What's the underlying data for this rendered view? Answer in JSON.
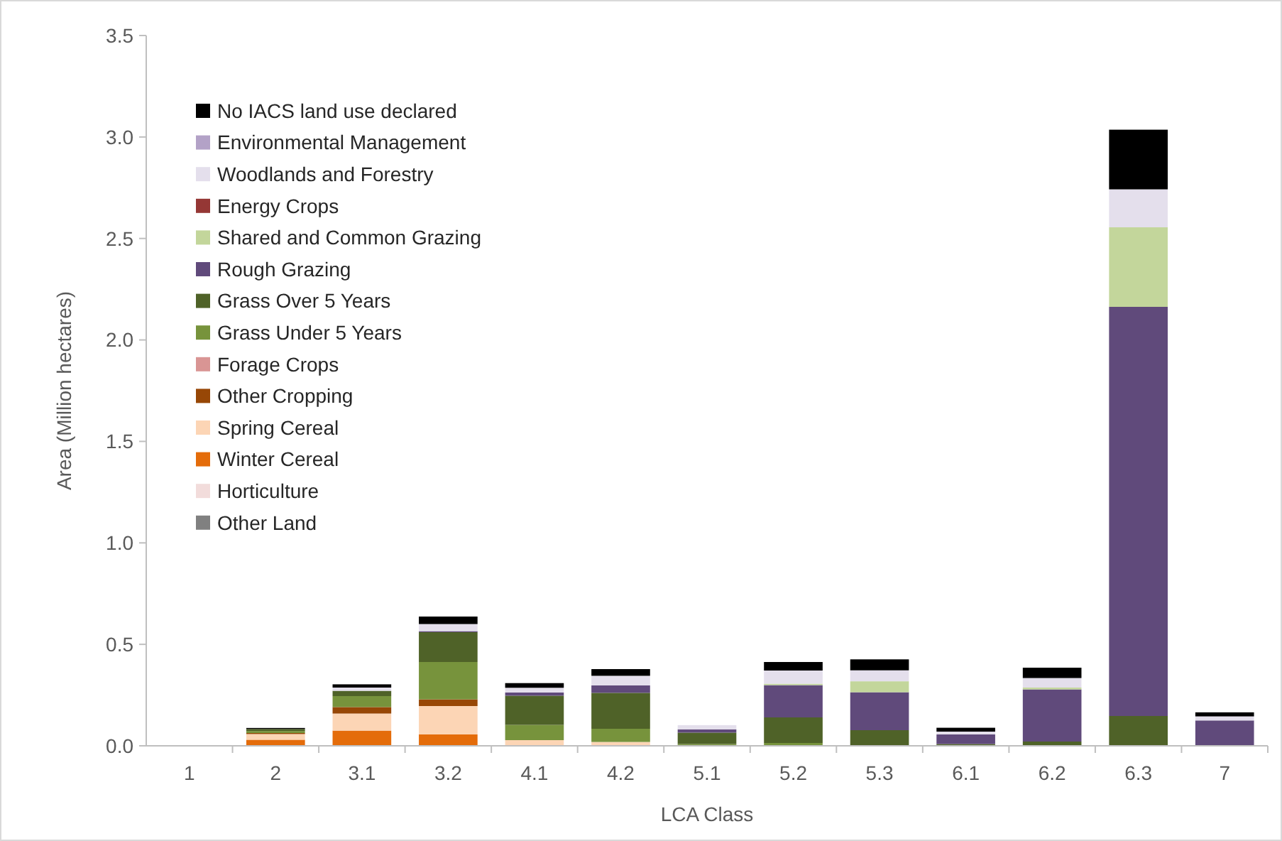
{
  "chart_data": {
    "type": "bar",
    "stacked": true,
    "xlabel": "LCA Class",
    "ylabel": "Area (Million hectares)",
    "categories": [
      "1",
      "2",
      "3.1",
      "3.2",
      "4.1",
      "4.2",
      "5.1",
      "5.2",
      "5.3",
      "6.1",
      "6.2",
      "6.3",
      "7"
    ],
    "ylim": [
      0,
      3.5
    ],
    "yticks": [
      {
        "value": 0,
        "label": "0.0"
      },
      {
        "value": 0.5,
        "label": "0.5"
      },
      {
        "value": 1,
        "label": "1.0"
      },
      {
        "value": 1.5,
        "label": "1.5"
      },
      {
        "value": 2,
        "label": "2.0"
      },
      {
        "value": 2.5,
        "label": "2.5"
      },
      {
        "value": 3,
        "label": "3.0"
      },
      {
        "value": 3.5,
        "label": "3.5"
      }
    ],
    "grid": false,
    "legend": "top left",
    "series": [
      {
        "name": "Other Land",
        "color": "#808080",
        "values": [
          0.003,
          0,
          0,
          0,
          0,
          0,
          0,
          0,
          0,
          0,
          0,
          0,
          0
        ]
      },
      {
        "name": "Horticulture",
        "color": "#f2dcdb",
        "values": [
          0,
          0,
          0,
          0,
          0,
          0,
          0,
          0,
          0,
          0,
          0,
          0,
          0
        ]
      },
      {
        "name": "Winter Cereal",
        "color": "#e46c0a",
        "values": [
          0,
          0.03,
          0.075,
          0.056,
          0,
          0,
          0,
          0,
          0,
          0,
          0,
          0,
          0
        ]
      },
      {
        "name": "Spring Cereal",
        "color": "#fcd5b5",
        "values": [
          0,
          0.028,
          0.084,
          0.14,
          0.028,
          0.019,
          0,
          0,
          0,
          0,
          0,
          0,
          0
        ]
      },
      {
        "name": "Other Cropping",
        "color": "#974706",
        "values": [
          0,
          0.005,
          0.032,
          0.033,
          0,
          0,
          0,
          0,
          0,
          0,
          0,
          0,
          0
        ]
      },
      {
        "name": "Forage Crops",
        "color": "#d99594",
        "values": [
          0,
          0,
          0,
          0,
          0,
          0,
          0,
          0,
          0,
          0,
          0,
          0,
          0
        ]
      },
      {
        "name": "Grass Under 5 Years",
        "color": "#77933c",
        "values": [
          0,
          0.01,
          0.054,
          0.184,
          0.075,
          0.065,
          0.009,
          0.014,
          0,
          0,
          0,
          0,
          0
        ]
      },
      {
        "name": "Grass Over 5 Years",
        "color": "#4f6228",
        "values": [
          0,
          0.01,
          0.026,
          0.147,
          0.144,
          0.177,
          0.056,
          0.126,
          0.077,
          0.009,
          0.021,
          0.147,
          0
        ]
      },
      {
        "name": "Rough Grazing",
        "color": "#604a7b",
        "values": [
          0,
          0,
          0,
          0.005,
          0.016,
          0.037,
          0.016,
          0.159,
          0.187,
          0.047,
          0.257,
          2.016,
          0.125
        ]
      },
      {
        "name": "Shared and Common Grazing",
        "color": "#c3d69b",
        "values": [
          0,
          0,
          0,
          0,
          0,
          0,
          0,
          0.007,
          0.054,
          0,
          0.009,
          0.392,
          0
        ]
      },
      {
        "name": "Energy Crops",
        "color": "#953735",
        "values": [
          0,
          0,
          0,
          0,
          0,
          0,
          0,
          0,
          0,
          0,
          0,
          0,
          0
        ]
      },
      {
        "name": "Woodlands and Forestry",
        "color": "#e4dfec",
        "values": [
          0,
          0,
          0.016,
          0.035,
          0.023,
          0.047,
          0.021,
          0.065,
          0.054,
          0.014,
          0.047,
          0.187,
          0.02
        ]
      },
      {
        "name": "Environmental Management",
        "color": "#b3a2c7",
        "values": [
          0,
          0,
          0,
          0,
          0,
          0,
          0,
          0,
          0,
          0,
          0,
          0,
          0
        ]
      },
      {
        "name": "No IACS land use declared",
        "color": "#000000",
        "values": [
          0,
          0.005,
          0.016,
          0.037,
          0.023,
          0.033,
          0,
          0.042,
          0.054,
          0.019,
          0.051,
          0.294,
          0.02
        ]
      }
    ]
  }
}
